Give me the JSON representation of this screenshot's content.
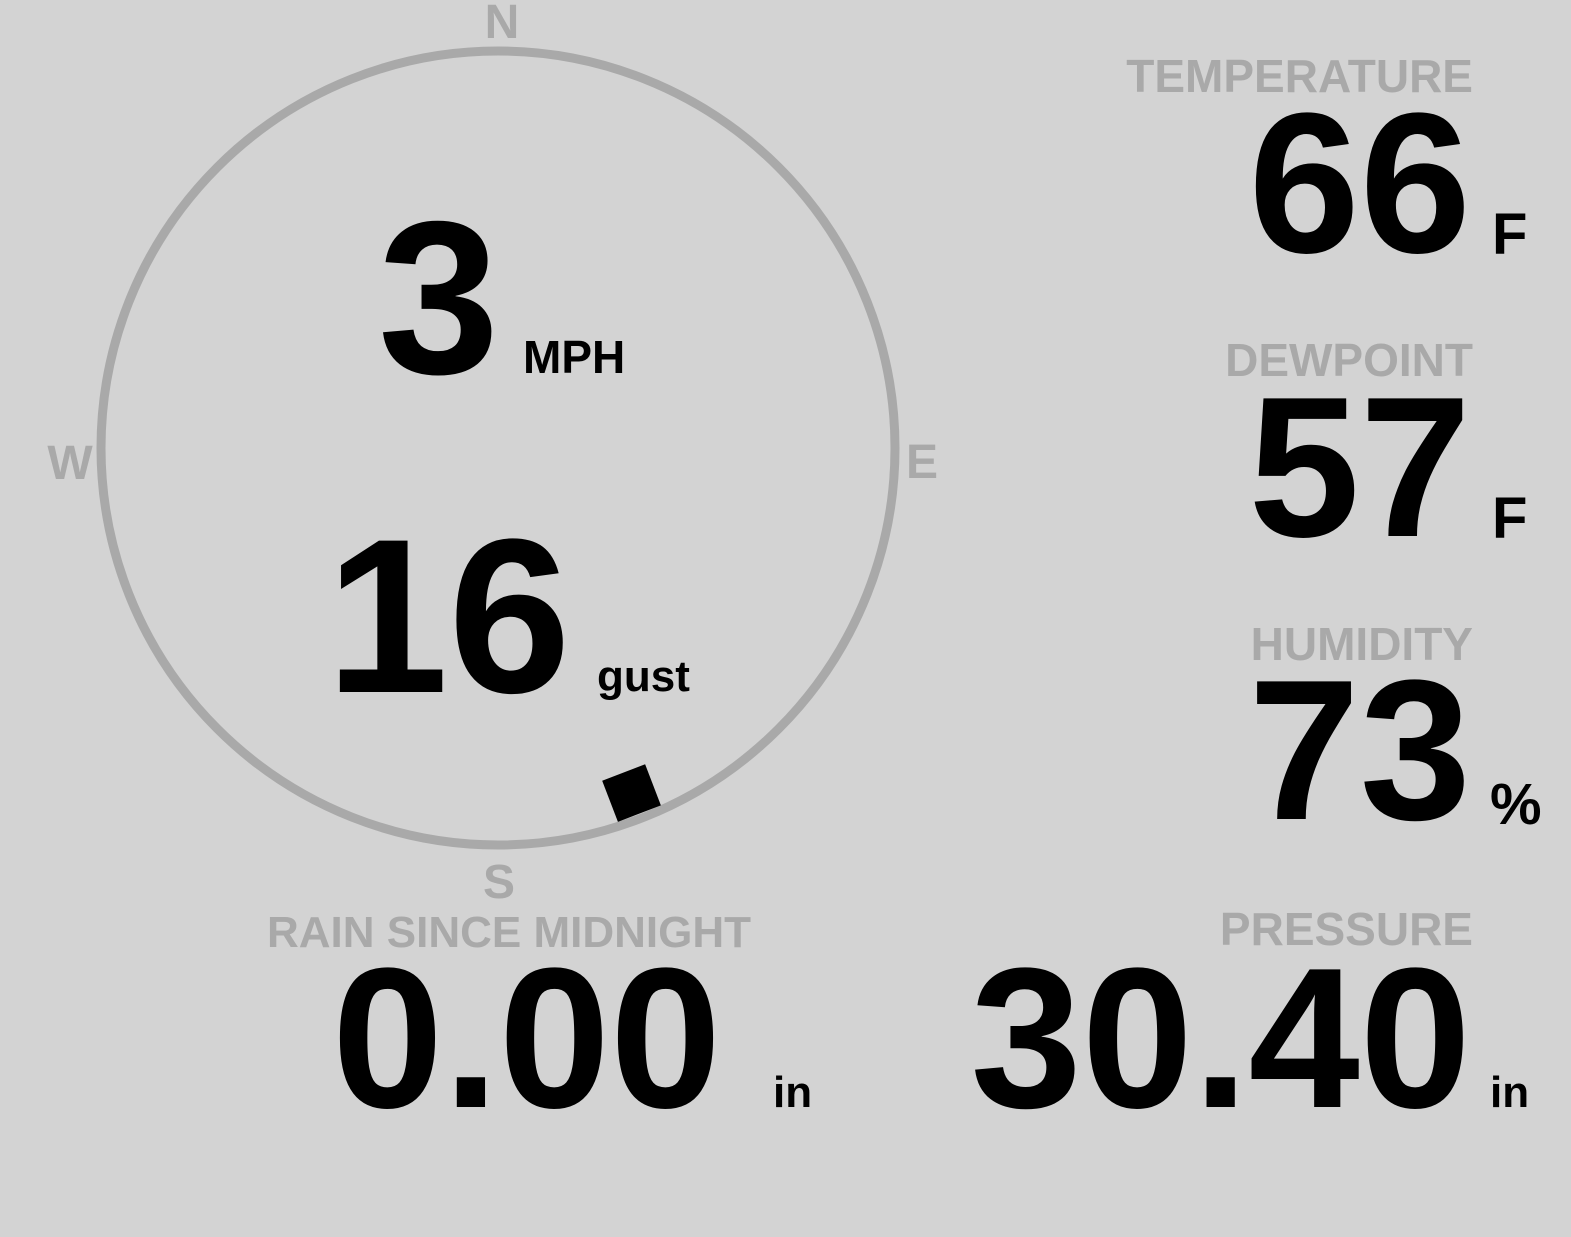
{
  "wind": {
    "speed": "3",
    "speed_unit": "MPH",
    "gust": "16",
    "gust_label": "gust",
    "direction_degrees": 159,
    "compass": {
      "n": "N",
      "e": "E",
      "s": "S",
      "w": "W"
    }
  },
  "temperature": {
    "label": "TEMPERATURE",
    "value": "66",
    "unit": "F"
  },
  "dewpoint": {
    "label": "DEWPOINT",
    "value": "57",
    "unit": "F"
  },
  "humidity": {
    "label": "HUMIDITY",
    "value": "73",
    "unit": "%"
  },
  "rain": {
    "label": "RAIN SINCE MIDNIGHT",
    "value": "0.00",
    "unit": "in"
  },
  "pressure": {
    "label": "PRESSURE",
    "value": "30.40",
    "unit": "in"
  },
  "colors": {
    "background": "#d3d3d3",
    "label": "#a9a9a9",
    "value": "#000000",
    "compass_ring": "#a9a9a9"
  }
}
